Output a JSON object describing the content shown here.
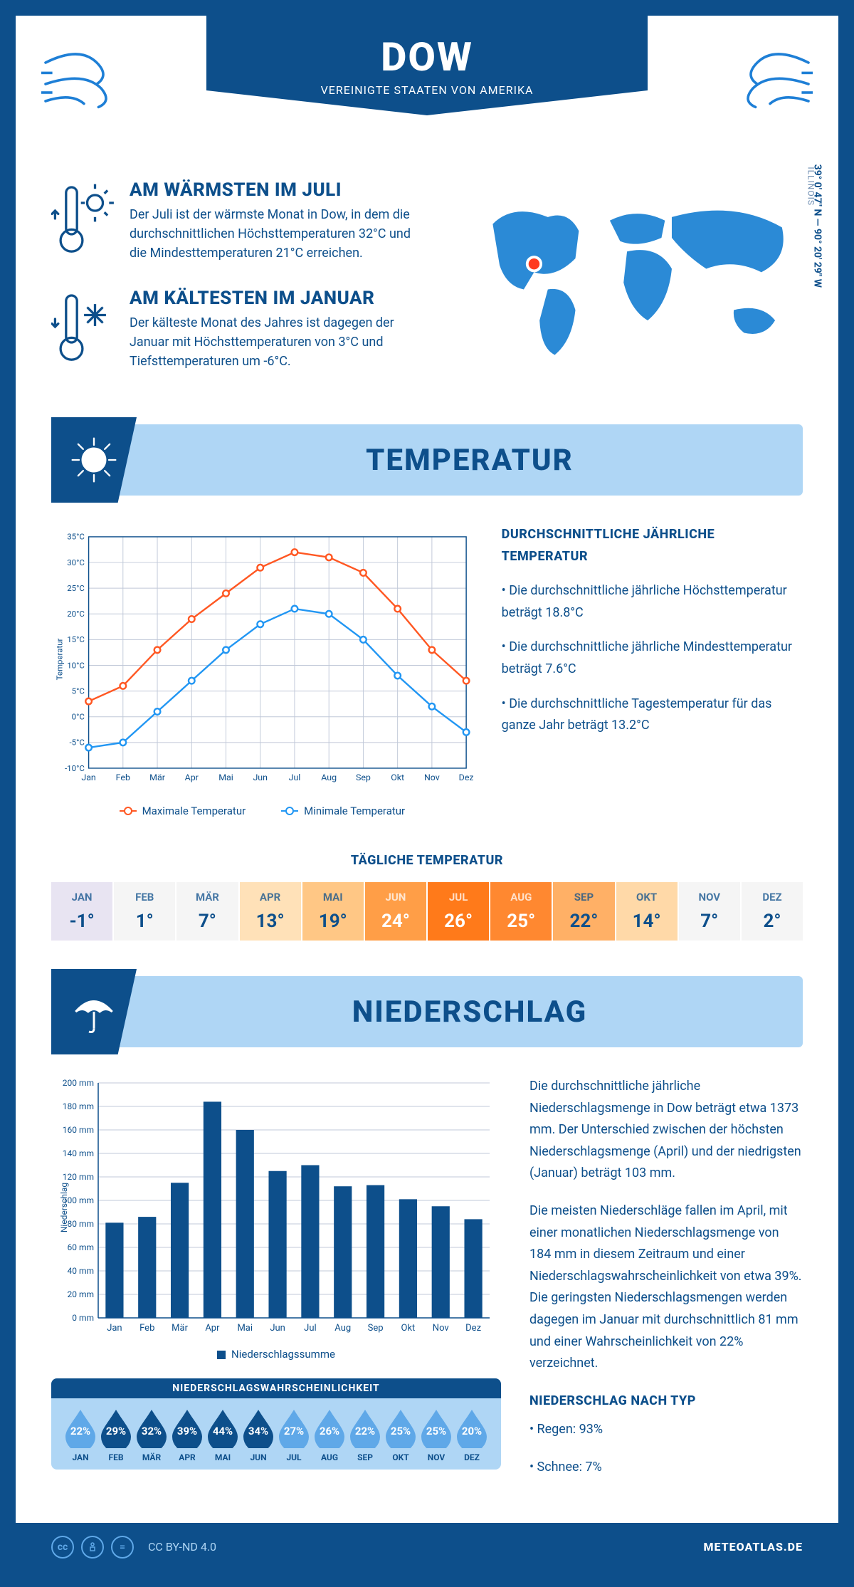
{
  "header": {
    "title": "DOW",
    "subtitle": "VEREINIGTE STAATEN VON AMERIKA"
  },
  "location": {
    "coords": "39° 0′ 47″ N — 90° 20′ 29″ W",
    "region": "ILLINOIS",
    "marker_color": "#ff3b1f"
  },
  "extremes": {
    "warmest": {
      "title": "AM WÄRMSTEN IM JULI",
      "text": "Der Juli ist der wärmste Monat in Dow, in dem die durchschnittlichen Höchsttemperaturen 32°C und die Mindesttemperaturen 21°C erreichen."
    },
    "coldest": {
      "title": "AM KÄLTESTEN IM JANUAR",
      "text": "Der kälteste Monat des Jahres ist dagegen der Januar mit Höchsttemperaturen von 3°C und Tiefsttemperaturen um -6°C."
    }
  },
  "temperature": {
    "banner_title": "TEMPERATUR",
    "sidebar_title": "DURCHSCHNITTLICHE JÄHRLICHE TEMPERATUR",
    "bullets": [
      "• Die durchschnittliche jährliche Höchsttemperatur beträgt 18.8°C",
      "• Die durchschnittliche jährliche Mindesttemperatur beträgt 7.6°C",
      "• Die durchschnittliche Tagestemperatur für das ganze Jahr beträgt 13.2°C"
    ],
    "chart": {
      "type": "line",
      "x_labels": [
        "Jan",
        "Feb",
        "Mär",
        "Apr",
        "Mai",
        "Jun",
        "Jul",
        "Aug",
        "Sep",
        "Okt",
        "Nov",
        "Dez"
      ],
      "y_label": "Temperatur",
      "ylim": [
        -10,
        35
      ],
      "ytick_step": 5,
      "ytick_suffix": "°C",
      "grid_color": "#c0c8d8",
      "background_color": "#ffffff",
      "axis_color": "#0d4f8b",
      "label_fontsize": 12,
      "series": [
        {
          "name": "Maximale Temperatur",
          "color": "#ff5722",
          "values": [
            3,
            6,
            13,
            19,
            24,
            29,
            32,
            31,
            28,
            21,
            13,
            7
          ]
        },
        {
          "name": "Minimale Temperatur",
          "color": "#2196f3",
          "values": [
            -6,
            -5,
            1,
            7,
            13,
            18,
            21,
            20,
            15,
            8,
            2,
            -3
          ]
        }
      ],
      "legend_max": "Maximale Temperatur",
      "legend_min": "Minimale Temperatur"
    },
    "daily": {
      "title": "TÄGLICHE TEMPERATUR",
      "months": [
        "JAN",
        "FEB",
        "MÄR",
        "APR",
        "MAI",
        "JUN",
        "JUL",
        "AUG",
        "SEP",
        "OKT",
        "NOV",
        "DEZ"
      ],
      "values": [
        "-1°",
        "1°",
        "7°",
        "13°",
        "19°",
        "24°",
        "26°",
        "25°",
        "22°",
        "14°",
        "7°",
        "2°"
      ],
      "bg_colors": [
        "#e8e4f2",
        "#f5f5f5",
        "#f5f5f5",
        "#ffe1b8",
        "#ffc785",
        "#ff9e47",
        "#ff7a1a",
        "#ff8830",
        "#ffb066",
        "#ffd9a8",
        "#f5f5f5",
        "#f5f5f5"
      ],
      "text_colors": [
        "#0d4f8b",
        "#0d4f8b",
        "#0d4f8b",
        "#0d4f8b",
        "#0d4f8b",
        "#ffffff",
        "#ffffff",
        "#ffffff",
        "#0d4f8b",
        "#0d4f8b",
        "#0d4f8b",
        "#0d4f8b"
      ]
    }
  },
  "precipitation": {
    "banner_title": "NIEDERSCHLAG",
    "paragraphs": [
      "Die durchschnittliche jährliche Niederschlagsmenge in Dow beträgt etwa 1373 mm. Der Unterschied zwischen der höchsten Niederschlagsmenge (April) und der niedrigsten (Januar) beträgt 103 mm.",
      "Die meisten Niederschläge fallen im April, mit einer monatlichen Niederschlagsmenge von 184 mm in diesem Zeitraum und einer Niederschlagswahrscheinlichkeit von etwa 39%. Die geringsten Niederschlagsmengen werden dagegen im Januar mit durchschnittlich 81 mm und einer Wahrscheinlichkeit von 22% verzeichnet."
    ],
    "by_type_title": "NIEDERSCHLAG NACH TYP",
    "by_type": [
      "• Regen: 93%",
      "• Schnee: 7%"
    ],
    "chart": {
      "type": "bar",
      "x_labels": [
        "Jan",
        "Feb",
        "Mär",
        "Apr",
        "Mai",
        "Jun",
        "Jul",
        "Aug",
        "Sep",
        "Okt",
        "Nov",
        "Dez"
      ],
      "y_label": "Niederschlag",
      "ylim": [
        0,
        200
      ],
      "ytick_step": 20,
      "ytick_suffix": " mm",
      "grid_color": "#c0c8d8",
      "bar_color": "#0d4f8b",
      "bar_width": 0.55,
      "values": [
        81,
        86,
        115,
        184,
        160,
        125,
        130,
        112,
        113,
        101,
        95,
        84
      ],
      "legend": "Niederschlagssumme"
    },
    "probability": {
      "title": "NIEDERSCHLAGSWAHRSCHEINLICHKEIT",
      "months": [
        "JAN",
        "FEB",
        "MÄR",
        "APR",
        "MAI",
        "JUN",
        "JUL",
        "AUG",
        "SEP",
        "OKT",
        "NOV",
        "DEZ"
      ],
      "values": [
        "22%",
        "29%",
        "32%",
        "39%",
        "44%",
        "34%",
        "27%",
        "26%",
        "22%",
        "25%",
        "25%",
        "20%"
      ],
      "drop_colors": [
        "#5fa8e8",
        "#0d4f8b",
        "#0d4f8b",
        "#0d4f8b",
        "#0d4f8b",
        "#0d4f8b",
        "#5fa8e8",
        "#5fa8e8",
        "#5fa8e8",
        "#5fa8e8",
        "#5fa8e8",
        "#5fa8e8"
      ]
    }
  },
  "footer": {
    "license": "CC BY-ND 4.0",
    "brand": "METEOATLAS.DE"
  }
}
